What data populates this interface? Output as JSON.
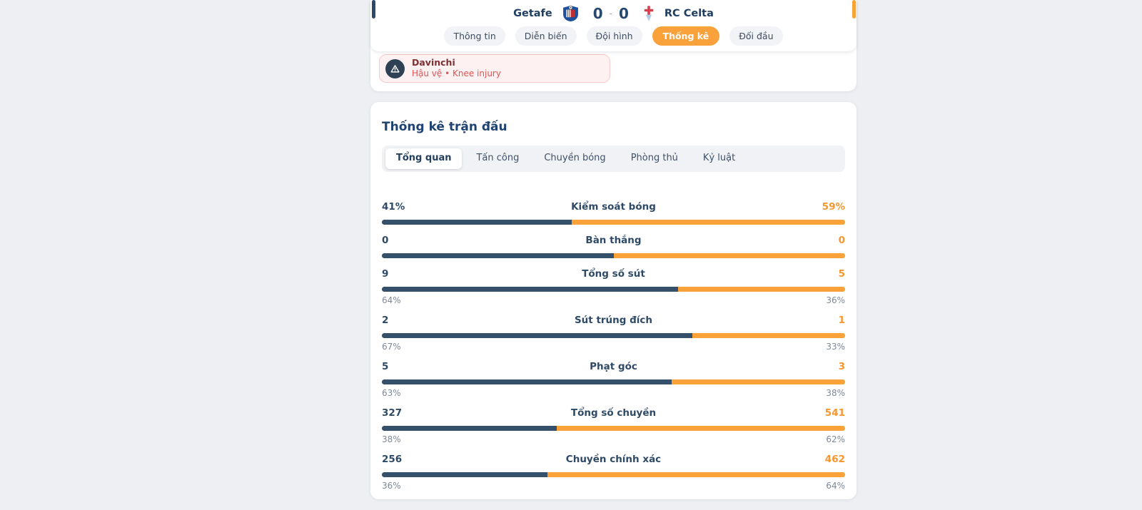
{
  "header": {
    "home_team": "Getafe",
    "away_team": "RC Celta",
    "home_score": "0",
    "away_score": "0",
    "score_separator": "-",
    "tabs": [
      {
        "label": "Thông tin",
        "active": false
      },
      {
        "label": "Diễn biến",
        "active": false
      },
      {
        "label": "Đội hình",
        "active": false
      },
      {
        "label": "Thống kê",
        "active": true
      },
      {
        "label": "Đối đầu",
        "active": false
      }
    ]
  },
  "injury": {
    "player": "Davinchi",
    "detail": "Hậu vệ • Knee injury",
    "icon": "warning-triangle-icon"
  },
  "stats": {
    "title": "Thống kê trận đấu",
    "tabs": [
      {
        "label": "Tổng quan",
        "active": true
      },
      {
        "label": "Tấn công",
        "active": false
      },
      {
        "label": "Chuyền bóng",
        "active": false
      },
      {
        "label": "Phòng thủ",
        "active": false
      },
      {
        "label": "Kỷ luật",
        "active": false
      }
    ],
    "rows": [
      {
        "home": "41%",
        "label": "Kiểm soát bóng",
        "away": "59%",
        "home_pct": 41,
        "sub_home": "",
        "sub_away": ""
      },
      {
        "home": "0",
        "label": "Bàn thắng",
        "away": "0",
        "home_pct": 50,
        "sub_home": "",
        "sub_away": ""
      },
      {
        "home": "9",
        "label": "Tổng số sút",
        "away": "5",
        "home_pct": 64,
        "sub_home": "64%",
        "sub_away": "36%"
      },
      {
        "home": "2",
        "label": "Sút trúng đích",
        "away": "1",
        "home_pct": 67,
        "sub_home": "67%",
        "sub_away": "33%"
      },
      {
        "home": "5",
        "label": "Phạt góc",
        "away": "3",
        "home_pct": 62.5,
        "sub_home": "63%",
        "sub_away": "38%"
      },
      {
        "home": "327",
        "label": "Tổng số chuyền",
        "away": "541",
        "home_pct": 37.7,
        "sub_home": "38%",
        "sub_away": "62%"
      },
      {
        "home": "256",
        "label": "Chuyền chính xác",
        "away": "462",
        "home_pct": 35.7,
        "sub_home": "36%",
        "sub_away": "64%"
      }
    ]
  },
  "colors": {
    "home_bar": "#35506A",
    "away_bar": "#F8A239",
    "accent_orange": "#F9A13B",
    "navy_text": "#1E3E63",
    "injury_red": "#E05454",
    "page_background": "#EDEFF3"
  }
}
